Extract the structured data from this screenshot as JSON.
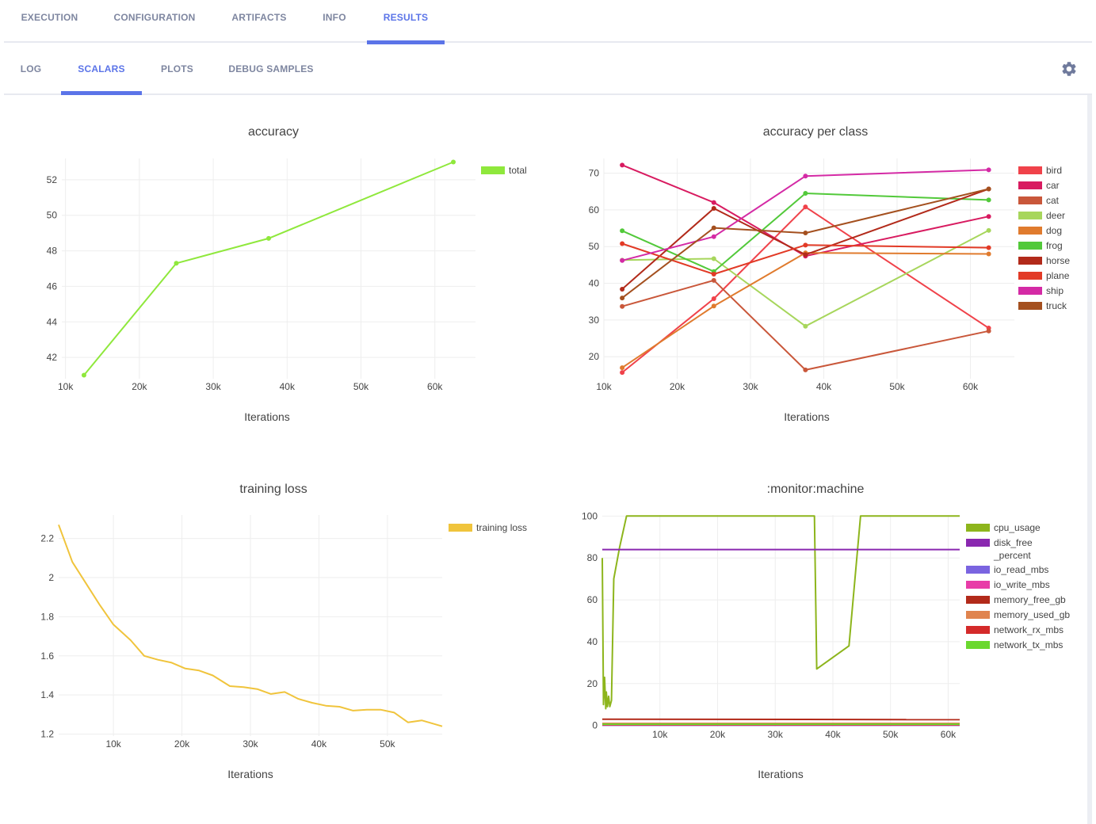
{
  "top_tabs": [
    "EXECUTION",
    "CONFIGURATION",
    "ARTIFACTS",
    "INFO",
    "RESULTS"
  ],
  "top_active": "RESULTS",
  "sub_tabs": [
    "LOG",
    "SCALARS",
    "PLOTS",
    "DEBUG SAMPLES"
  ],
  "sub_active": "SCALARS",
  "settings_icon": "gear-icon",
  "charts": {
    "accuracy": {
      "title": "accuracy",
      "xlabel": "Iterations",
      "xticks": [
        "10k",
        "20k",
        "30k",
        "40k",
        "50k",
        "60k"
      ],
      "yticks": [
        "42",
        "44",
        "46",
        "48",
        "50",
        "52"
      ],
      "legend": [
        "total"
      ]
    },
    "per_class": {
      "title": "accuracy per class",
      "xlabel": "Iterations",
      "xticks": [
        "10k",
        "20k",
        "30k",
        "40k",
        "50k",
        "60k"
      ],
      "yticks": [
        "20",
        "30",
        "40",
        "50",
        "60",
        "70"
      ],
      "legend": [
        "bird",
        "car",
        "cat",
        "deer",
        "dog",
        "frog",
        "horse",
        "plane",
        "ship",
        "truck"
      ]
    },
    "loss": {
      "title": "training loss",
      "xlabel": "Iterations",
      "xticks": [
        "10k",
        "20k",
        "30k",
        "40k",
        "50k"
      ],
      "yticks": [
        "1.2",
        "1.4",
        "1.6",
        "1.8",
        "2",
        "2.2"
      ],
      "legend": [
        "training loss"
      ]
    },
    "monitor": {
      "title": ":monitor:machine",
      "xlabel": "Iterations",
      "xticks": [
        "10k",
        "20k",
        "30k",
        "40k",
        "50k",
        "60k"
      ],
      "yticks": [
        "0",
        "20",
        "40",
        "60",
        "80",
        "100"
      ],
      "legend": [
        "cpu_usage",
        "disk_free\n_percent",
        "io_read_mbs",
        "io_write_mbs",
        "memory_free_gb",
        "memory_used_gb",
        "network_rx_mbs",
        "network_tx_mbs"
      ]
    }
  },
  "chart_data": [
    {
      "type": "line",
      "title": "accuracy",
      "xlabel": "Iterations",
      "ylabel": "",
      "xlim": [
        9500,
        65500
      ],
      "ylim": [
        40.8,
        53.2
      ],
      "series": [
        {
          "name": "total",
          "color": "#8fe83c",
          "x": [
            12500,
            25000,
            37500,
            62500
          ],
          "y": [
            41.0,
            47.3,
            48.7,
            53.0
          ]
        }
      ]
    },
    {
      "type": "line",
      "title": "accuracy per class",
      "xlabel": "Iterations",
      "ylabel": "",
      "xlim": [
        10000,
        66000
      ],
      "ylim": [
        14,
        74
      ],
      "series": [
        {
          "name": "bird",
          "color": "#f0424a",
          "x": [
            12500,
            25000,
            37500,
            62500
          ],
          "y": [
            15.7,
            35.8,
            60.8,
            27.8
          ]
        },
        {
          "name": "car",
          "color": "#d81b60",
          "x": [
            12500,
            25000,
            37500,
            62500
          ],
          "y": [
            72.2,
            62.0,
            47.4,
            58.2
          ]
        },
        {
          "name": "cat",
          "color": "#c9573a",
          "x": [
            12500,
            25000,
            37500,
            62500
          ],
          "y": [
            33.7,
            40.8,
            16.4,
            27.0
          ]
        },
        {
          "name": "deer",
          "color": "#a7d65c",
          "x": [
            12500,
            25000,
            37500,
            62500
          ],
          "y": [
            46.3,
            46.7,
            28.3,
            54.4
          ]
        },
        {
          "name": "dog",
          "color": "#e07b2e",
          "x": [
            12500,
            25000,
            37500,
            62500
          ],
          "y": [
            17.0,
            33.8,
            48.3,
            48.0
          ]
        },
        {
          "name": "frog",
          "color": "#52c93a",
          "x": [
            12500,
            25000,
            37500,
            62500
          ],
          "y": [
            54.3,
            43.2,
            64.5,
            62.7
          ]
        },
        {
          "name": "horse",
          "color": "#b22a1a",
          "x": [
            12500,
            25000,
            37500,
            62500
          ],
          "y": [
            38.4,
            60.4,
            47.8,
            65.7
          ]
        },
        {
          "name": "plane",
          "color": "#e23a26",
          "x": [
            12500,
            25000,
            37500,
            62500
          ],
          "y": [
            50.8,
            42.5,
            50.4,
            49.7
          ]
        },
        {
          "name": "ship",
          "color": "#d42aa5",
          "x": [
            12500,
            25000,
            37500,
            62500
          ],
          "y": [
            46.2,
            52.7,
            69.2,
            70.9
          ]
        },
        {
          "name": "truck",
          "color": "#a4501f",
          "x": [
            12500,
            25000,
            37500,
            62500
          ],
          "y": [
            36.0,
            55.1,
            53.7,
            65.7
          ]
        }
      ]
    },
    {
      "type": "line",
      "title": "training loss",
      "xlabel": "Iterations",
      "ylabel": "",
      "xlim": [
        2000,
        58000
      ],
      "ylim": [
        1.19,
        2.32
      ],
      "series": [
        {
          "name": "training loss",
          "color": "#f0c43c",
          "x": [
            2000,
            4000,
            6000,
            8000,
            10000,
            12500,
            14500,
            16500,
            18500,
            20500,
            22500,
            24500,
            27000,
            29000,
            31000,
            33000,
            35000,
            37000,
            39000,
            41000,
            43000,
            45000,
            47000,
            49000,
            51000,
            53000,
            55000,
            57000,
            58000
          ],
          "y": [
            2.27,
            2.08,
            1.97,
            1.86,
            1.76,
            1.68,
            1.6,
            1.58,
            1.565,
            1.535,
            1.525,
            1.5,
            1.445,
            1.44,
            1.43,
            1.405,
            1.415,
            1.38,
            1.36,
            1.345,
            1.34,
            1.32,
            1.325,
            1.325,
            1.31,
            1.26,
            1.27,
            1.25,
            1.24
          ]
        }
      ]
    },
    {
      "type": "line",
      "title": ":monitor:machine",
      "xlabel": "Iterations",
      "ylabel": "",
      "xlim": [
        0,
        62000
      ],
      "ylim": [
        -0.5,
        100.5
      ],
      "series": [
        {
          "name": "cpu_usage",
          "color": "#8db51c",
          "x": [
            0,
            200,
            400,
            600,
            700,
            900,
            1100,
            1300,
            1600,
            2000,
            3000,
            4200,
            36800,
            37200,
            42800,
            44800,
            62000
          ],
          "y": [
            80,
            10,
            23,
            8,
            16,
            9,
            14,
            9,
            12,
            70,
            85,
            100,
            100,
            27,
            38,
            100,
            100
          ]
        },
        {
          "name": "disk_free\n_percent",
          "color": "#8a28b0",
          "x": [
            0,
            62000
          ],
          "y": [
            84,
            84
          ]
        },
        {
          "name": "io_read_mbs",
          "color": "#7a64e0",
          "x": [
            0,
            62000
          ],
          "y": [
            0.1,
            0.1
          ]
        },
        {
          "name": "io_write_mbs",
          "color": "#e83ca8",
          "x": [
            0,
            62000
          ],
          "y": [
            0.2,
            0.2
          ]
        },
        {
          "name": "memory_free_gb",
          "color": "#b22a1a",
          "x": [
            0,
            62000
          ],
          "y": [
            3.0,
            2.8
          ]
        },
        {
          "name": "memory_used_gb",
          "color": "#e0844e",
          "x": [
            0,
            62000
          ],
          "y": [
            1.0,
            1.0
          ]
        },
        {
          "name": "network_rx_mbs",
          "color": "#d42a2a",
          "x": [
            0,
            62000
          ],
          "y": [
            0.4,
            0.4
          ]
        },
        {
          "name": "network_tx_mbs",
          "color": "#6ad82e",
          "x": [
            0,
            62000
          ],
          "y": [
            0.6,
            0.6
          ]
        }
      ]
    }
  ]
}
